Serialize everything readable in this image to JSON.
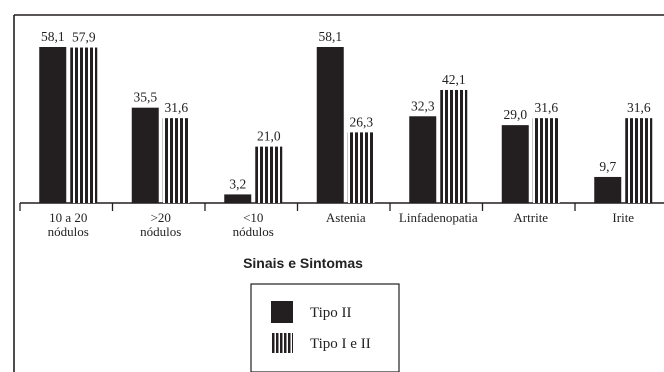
{
  "chart_data": {
    "type": "bar",
    "categories": [
      [
        "10 a 20",
        "nódulos"
      ],
      [
        ">20",
        "nódulos"
      ],
      [
        "<10",
        "nódulos"
      ],
      [
        "Astenia"
      ],
      [
        "Linfadenopatia"
      ],
      [
        "Artrite"
      ],
      [
        "Irite"
      ]
    ],
    "series": [
      {
        "name": "Tipo II",
        "values": [
          58.1,
          35.5,
          3.2,
          58.1,
          32.3,
          29.0,
          9.7
        ],
        "labels": [
          "58,1",
          "35,5",
          "3,2",
          "58,1",
          "32,3",
          "29,0",
          "9,7"
        ],
        "fill": "solid",
        "color": "#231f20"
      },
      {
        "name": "Tipo I e II",
        "values": [
          57.9,
          31.6,
          21.0,
          26.3,
          42.1,
          31.6,
          31.6
        ],
        "labels": [
          "57,9",
          "31,6",
          "21,0",
          "26,3",
          "42,1",
          "31,6",
          "31,6"
        ],
        "fill": "vertical-stripes",
        "color": "#231f20"
      }
    ],
    "title": "",
    "xlabel": "Sinais e Sintomas",
    "ylabel": "",
    "ylim": [
      0,
      62
    ],
    "grid": false,
    "legend": {
      "position": "bottom-center",
      "entries": [
        "Tipo II",
        "Tipo I e II"
      ]
    }
  }
}
